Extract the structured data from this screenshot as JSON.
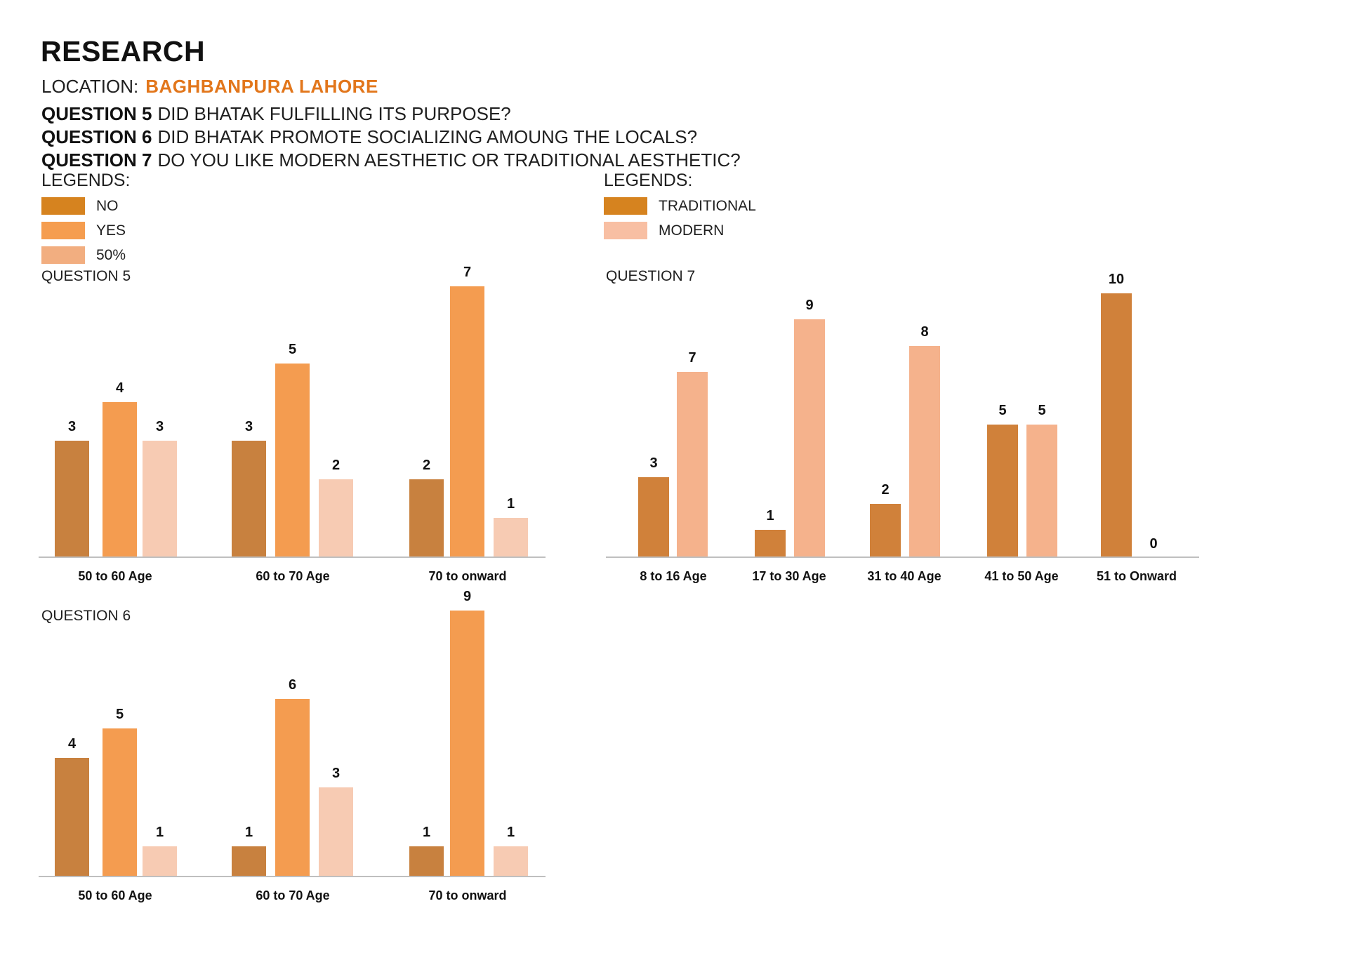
{
  "page": {
    "title": "RESEARCH",
    "location_label": "LOCATION:",
    "location_value": "BAGHBANPURA LAHORE"
  },
  "questions": [
    {
      "label": "QUESTION 5",
      "text": "DID BHATAK FULFILLING ITS PURPOSE?"
    },
    {
      "label": "QUESTION 6",
      "text": "DID BHATAK PROMOTE SOCIALIZING AMOUNG THE LOCALS?"
    },
    {
      "label": "QUESTION 7",
      "text": "DO YOU LIKE MODERN AESTHETIC OR TRADITIONAL AESTHETIC?"
    }
  ],
  "legend_left": {
    "heading": "LEGENDS:",
    "items": [
      {
        "label": "NO",
        "color": "legend_no"
      },
      {
        "label": "YES",
        "color": "legend_yes"
      },
      {
        "label": "50%",
        "color": "legend_fifty"
      }
    ]
  },
  "legend_right": {
    "heading": "LEGENDS:",
    "items": [
      {
        "label": "TRADITIONAL",
        "color": "legend_traditional"
      },
      {
        "label": "MODERN",
        "color": "legend_modern"
      }
    ]
  },
  "colors": {
    "no": "#C8813F",
    "yes": "#F49C50",
    "fifty": "#F7CBB3",
    "traditional": "#D0813A",
    "modern": "#F5B28C",
    "legend_no": "#D6831F",
    "legend_yes": "#F59D4F",
    "legend_fifty": "#F2AE80",
    "legend_traditional": "#D6831F",
    "legend_modern": "#F8BFA3",
    "location_accent": "#E2761B",
    "axis": "#BFBFBF"
  },
  "chart_data": [
    {
      "id": "question5",
      "type": "bar",
      "title": "QUESTION 5",
      "categories": [
        "50 to 60 Age",
        "60 to 70 Age",
        "70 to onward"
      ],
      "series": [
        {
          "name": "NO",
          "color": "no",
          "values": [
            3,
            3,
            2
          ]
        },
        {
          "name": "YES",
          "color": "yes",
          "values": [
            4,
            5,
            7
          ]
        },
        {
          "name": "50%",
          "color": "fifty",
          "values": [
            3,
            2,
            1
          ]
        }
      ],
      "ylim": [
        0,
        7
      ],
      "value_labels": true,
      "grid": false,
      "legend_position": "top-left"
    },
    {
      "id": "question6",
      "type": "bar",
      "title": "QUESTION 6",
      "categories": [
        "50 to 60 Age",
        "60 to 70 Age",
        "70 to onward"
      ],
      "series": [
        {
          "name": "NO",
          "color": "no",
          "values": [
            4,
            1,
            1
          ]
        },
        {
          "name": "YES",
          "color": "yes",
          "values": [
            5,
            6,
            9
          ]
        },
        {
          "name": "50%",
          "color": "fifty",
          "values": [
            1,
            3,
            1
          ]
        }
      ],
      "ylim": [
        0,
        9
      ],
      "value_labels": true,
      "grid": false,
      "legend_position": "shared-top-left"
    },
    {
      "id": "question7",
      "type": "bar",
      "title": "QUESTION 7",
      "categories": [
        "8 to 16 Age",
        "17 to 30 Age",
        "31 to 40 Age",
        "41 to 50 Age",
        "51 to Onward"
      ],
      "series": [
        {
          "name": "TRADITIONAL",
          "color": "traditional",
          "values": [
            3,
            1,
            2,
            5,
            10
          ]
        },
        {
          "name": "MODERN",
          "color": "modern",
          "values": [
            7,
            9,
            8,
            5,
            0
          ]
        }
      ],
      "ylim": [
        0,
        10
      ],
      "value_labels": true,
      "grid": false,
      "legend_position": "top-right"
    }
  ]
}
